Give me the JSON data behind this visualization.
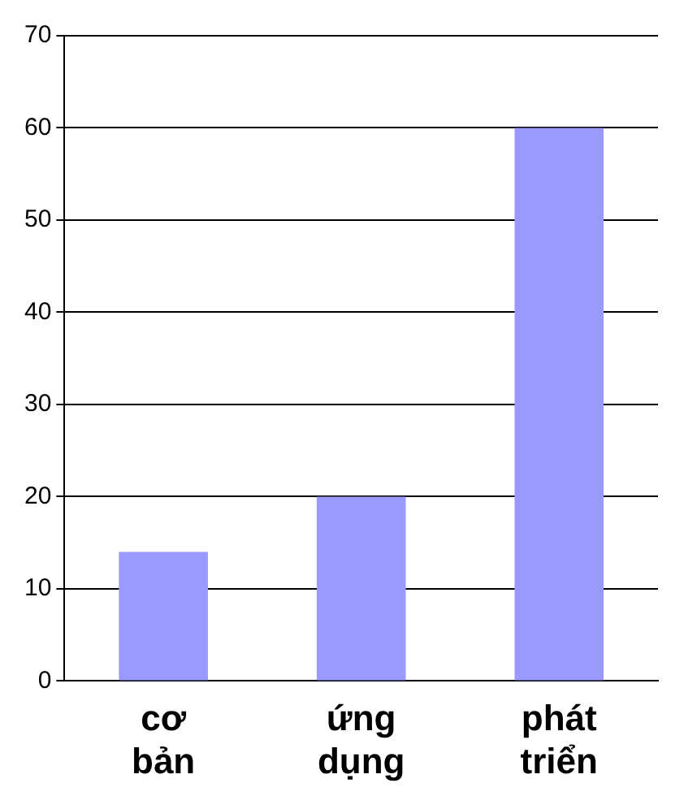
{
  "chart_data": {
    "type": "bar",
    "categories": [
      "cơ bản",
      "ứng dụng",
      "phát triển"
    ],
    "values": [
      14,
      20,
      60
    ],
    "color": "#9999ff",
    "ylim": [
      0,
      70
    ],
    "yticks": [
      0,
      10,
      20,
      30,
      40,
      50,
      60,
      70
    ],
    "grid": "y"
  }
}
